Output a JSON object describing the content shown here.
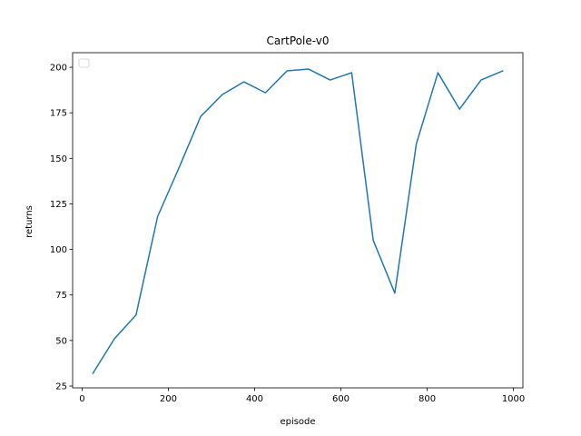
{
  "chart_data": {
    "type": "line",
    "title": "CartPole-v0",
    "xlabel": "episode",
    "ylabel": "returns",
    "xlim": [
      -22,
      1022
    ],
    "ylim": [
      24,
      208
    ],
    "xticks": [
      0,
      200,
      400,
      600,
      800,
      1000
    ],
    "yticks": [
      25,
      50,
      75,
      100,
      125,
      150,
      175,
      200
    ],
    "grid": false,
    "legend": "top-left (empty)",
    "series": [
      {
        "color": "#1f77b4",
        "x": [
          25,
          75,
          125,
          175,
          225,
          275,
          325,
          375,
          425,
          475,
          525,
          575,
          625,
          675,
          725,
          775,
          825,
          875,
          925,
          975
        ],
        "y": [
          32,
          51,
          64,
          118,
          145,
          173,
          185,
          192,
          186,
          198,
          199,
          193,
          197,
          105,
          76,
          158,
          197,
          177,
          193,
          198
        ]
      }
    ]
  }
}
